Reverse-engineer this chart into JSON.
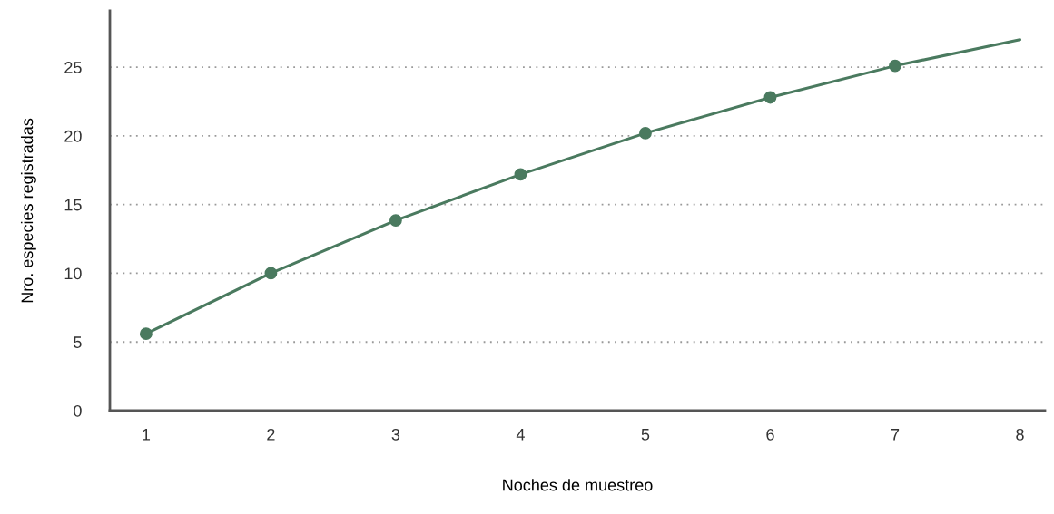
{
  "chart_data": {
    "type": "line",
    "xlabel": "Noches de muestreo",
    "ylabel": "Nro. especies registradas",
    "x": [
      1,
      2,
      3,
      4,
      5,
      6,
      7,
      8
    ],
    "series": [
      {
        "color": "#4a7a5f",
        "marker": "none",
        "values": [
          5.6,
          10.0,
          13.85,
          17.2,
          20.2,
          22.8,
          25.1,
          27.0
        ]
      },
      {
        "type": "scatter",
        "color": "#4a7a5f",
        "marker": "circle",
        "x": [
          1,
          2,
          3,
          4,
          5,
          6,
          7
        ],
        "values": [
          5.6,
          10.0,
          13.85,
          17.2,
          20.2,
          22.8,
          25.1
        ]
      }
    ],
    "xlim": [
      0.71,
      8.2
    ],
    "xticks": [
      1,
      2,
      3,
      4,
      5,
      6,
      7,
      8
    ],
    "ylim": [
      0,
      29.1
    ],
    "yticks": [
      0,
      5,
      10,
      15,
      20,
      25
    ],
    "grid": "y",
    "legend": false
  }
}
